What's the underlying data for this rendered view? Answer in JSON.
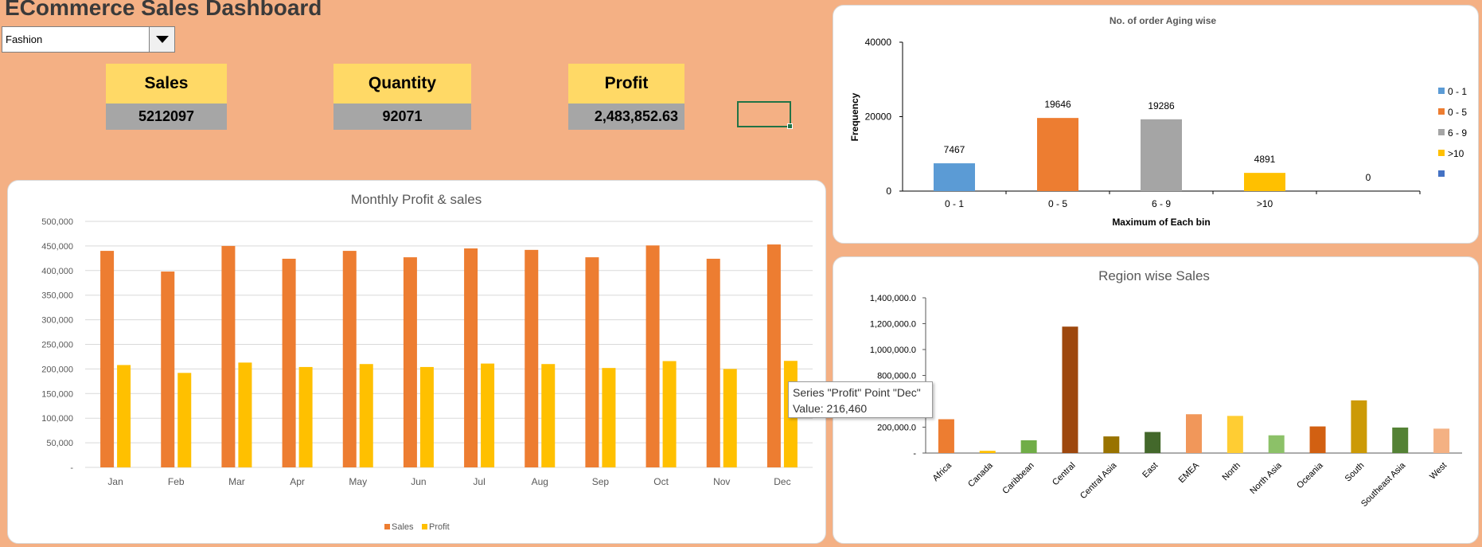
{
  "title": "ECommerce Sales Dashboard",
  "filter": {
    "selected": "Fashion",
    "options_visible": [
      "Fashion"
    ]
  },
  "kpis": [
    {
      "label": "Sales",
      "value": "5212097"
    },
    {
      "label": "Quantity",
      "value": "92071"
    },
    {
      "label": "Profit",
      "value": "2,483,852.63"
    }
  ],
  "tooltip": {
    "line1": "Series \"Profit\" Point \"Dec\"",
    "line2": "Value:  216,460"
  },
  "colors": {
    "background": "#F4B084",
    "kpi_header": "#FFD966",
    "kpi_value": "#A6A6A6",
    "sales": "#ED7D31",
    "profit": "#FFC000"
  },
  "chart_data": [
    {
      "type": "bar",
      "title": "Monthly Profit & sales",
      "categories": [
        "Jan",
        "Feb",
        "Mar",
        "Apr",
        "May",
        "Jun",
        "Jul",
        "Aug",
        "Sep",
        "Oct",
        "Nov",
        "Dec"
      ],
      "series": [
        {
          "name": "Sales",
          "color": "#ED7D31",
          "values": [
            440000,
            398000,
            450000,
            424000,
            440000,
            427000,
            445000,
            442000,
            427000,
            451000,
            424000,
            453000
          ]
        },
        {
          "name": "Profit",
          "color": "#FFC000",
          "values": [
            208000,
            192000,
            213000,
            204000,
            210000,
            204000,
            211000,
            210000,
            202000,
            216000,
            200000,
            216460
          ]
        }
      ],
      "ylim": [
        0,
        500000
      ],
      "yticks": [
        "-",
        "50,000",
        "100,000",
        "150,000",
        "200,000",
        "250,000",
        "300,000",
        "350,000",
        "400,000",
        "450,000",
        "500,000"
      ],
      "grid": true,
      "legend": "bottom"
    },
    {
      "type": "bar",
      "title": "No. of order Aging wise",
      "xlabel": "Maximum of Each bin",
      "ylabel": "Frequency",
      "categories": [
        "0 - 1",
        "0 - 5",
        "6 - 9",
        ">10",
        ""
      ],
      "values": [
        7467,
        19646,
        19286,
        4891,
        0
      ],
      "data_labels": [
        "7467",
        "19646",
        "19286",
        "4891",
        "0"
      ],
      "colors": [
        "#5B9BD5",
        "#ED7D31",
        "#A5A5A5",
        "#FFC000",
        "#4472C4"
      ],
      "legend_entries": [
        "0 - 1",
        "0 - 5",
        "6 - 9",
        ">10",
        ""
      ],
      "ylim": [
        0,
        40000
      ],
      "yticks": [
        "0",
        "20000",
        "40000"
      ],
      "grid": false,
      "legend": "right"
    },
    {
      "type": "bar",
      "title": "Region wise Sales",
      "categories": [
        "Africa",
        "Canada",
        "Caribbean",
        "Central",
        "Central Asia",
        "East",
        "EMEA",
        "North",
        "North Asia",
        "Oceania",
        "South",
        "Southeast Asia",
        "West"
      ],
      "values": [
        305000,
        20000,
        115000,
        1140000,
        150000,
        190000,
        350000,
        335000,
        160000,
        240000,
        475000,
        230000,
        220000
      ],
      "colors": [
        "#ED7D31",
        "#FFC000",
        "#70AD47",
        "#9E480E",
        "#997300",
        "#43682B",
        "#F1975A",
        "#FFCD33",
        "#8CC168",
        "#D26012",
        "#CC9A06",
        "#548235",
        "#F4B183"
      ],
      "ylim": [
        0,
        1400000
      ],
      "yticks": [
        "-",
        "200,000.0",
        "",
        "800,000.0",
        "1,000,000.0",
        "1,200,000.0",
        "1,400,000.0"
      ],
      "grid": false
    }
  ]
}
